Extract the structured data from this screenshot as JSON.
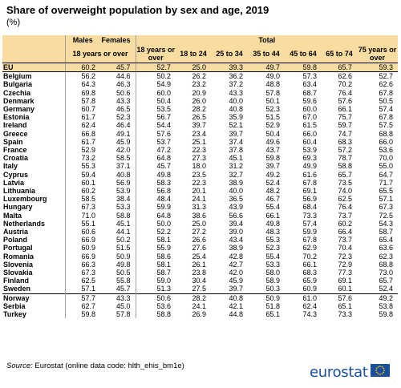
{
  "title": "Share of overweight population by sex and age, 2019",
  "unit": "(%)",
  "headers": {
    "males": "Males",
    "females": "Females",
    "age_sex": "18 years or over",
    "total": "Total",
    "age_cols": [
      "18 years or over",
      "18 to 24",
      "25 to 34",
      "35 to 44",
      "45 to 64",
      "65 to 74",
      "75 years or over"
    ]
  },
  "rows": [
    {
      "country": "EU",
      "values": [
        "60.2",
        "45.7",
        "52.7",
        "25.0",
        "39.3",
        "49.7",
        "59.8",
        "65.7",
        "59.3"
      ]
    },
    {
      "country": "Belgium",
      "values": [
        "56.2",
        "44.6",
        "50.2",
        "26.2",
        "36.2",
        "49.0",
        "57.3",
        "62.6",
        "52.7"
      ]
    },
    {
      "country": "Bulgaria",
      "values": [
        "64.3",
        "46.3",
        "54.9",
        "23.2",
        "37.2",
        "48.8",
        "63.4",
        "70.2",
        "62.6"
      ]
    },
    {
      "country": "Czechia",
      "values": [
        "69.8",
        "50.6",
        "60.0",
        "20.9",
        "43.3",
        "57.8",
        "68.7",
        "76.4",
        "67.8"
      ]
    },
    {
      "country": "Denmark",
      "values": [
        "57.8",
        "43.3",
        "50.4",
        "26.0",
        "40.0",
        "50.1",
        "59.6",
        "57.6",
        "50.5"
      ]
    },
    {
      "country": "Germany",
      "values": [
        "60.7",
        "46.5",
        "53.5",
        "28.2",
        "40.8",
        "52.3",
        "60.0",
        "66.1",
        "57.4"
      ]
    },
    {
      "country": "Estonia",
      "values": [
        "61.7",
        "52.3",
        "56.7",
        "26.5",
        "35.9",
        "51.5",
        "67.0",
        "75.7",
        "67.8"
      ]
    },
    {
      "country": "Ireland",
      "values": [
        "62.4",
        "46.4",
        "54.4",
        "39.7",
        "52.1",
        "52.9",
        "61.5",
        "59.7",
        "57.5"
      ]
    },
    {
      "country": "Greece",
      "values": [
        "66.8",
        "49.1",
        "57.6",
        "23.4",
        "39.7",
        "50.4",
        "66.0",
        "74.7",
        "68.8"
      ]
    },
    {
      "country": "Spain",
      "values": [
        "61.7",
        "45.9",
        "53.7",
        "25.1",
        "37.4",
        "49.6",
        "60.4",
        "68.3",
        "66.0"
      ]
    },
    {
      "country": "France",
      "values": [
        "52.9",
        "42.0",
        "47.2",
        "22.3",
        "37.8",
        "43.7",
        "53.9",
        "57.2",
        "53.6"
      ]
    },
    {
      "country": "Croatia",
      "values": [
        "73.2",
        "58.5",
        "64.8",
        "27.3",
        "45.1",
        "59.8",
        "69.3",
        "78.7",
        "70.0"
      ]
    },
    {
      "country": "Italy",
      "values": [
        "55.3",
        "37.1",
        "45.7",
        "18.0",
        "31.2",
        "39.7",
        "49.9",
        "58.8",
        "55.0"
      ]
    },
    {
      "country": "Cyprus",
      "values": [
        "59.4",
        "40.8",
        "49.8",
        "23.5",
        "32.7",
        "49.2",
        "61.6",
        "65.7",
        "64.7"
      ]
    },
    {
      "country": "Latvia",
      "values": [
        "60.1",
        "56.9",
        "58.3",
        "22.3",
        "38.9",
        "52.4",
        "67.8",
        "73.5",
        "71.7"
      ]
    },
    {
      "country": "Lithuania",
      "values": [
        "60.2",
        "53.9",
        "56.8",
        "20.1",
        "40.0",
        "48.2",
        "69.1",
        "74.0",
        "65.5"
      ]
    },
    {
      "country": "Luxembourg",
      "values": [
        "58.5",
        "38.4",
        "48.4",
        "24.1",
        "36.5",
        "46.7",
        "56.9",
        "62.5",
        "57.1"
      ]
    },
    {
      "country": "Hungary",
      "values": [
        "67.3",
        "53.3",
        "59.9",
        "31.3",
        "43.9",
        "55.4",
        "68.4",
        "76.4",
        "67.3"
      ]
    },
    {
      "country": "Malta",
      "values": [
        "71.0",
        "58.8",
        "64.8",
        "38.6",
        "56.6",
        "66.1",
        "73.3",
        "73.7",
        "72.5"
      ]
    },
    {
      "country": "Netherlands",
      "values": [
        "55.1",
        "45.1",
        "50.0",
        "25.0",
        "39.4",
        "49.8",
        "57.4",
        "60.2",
        "54.3"
      ]
    },
    {
      "country": "Austria",
      "values": [
        "60.6",
        "44.1",
        "52.2",
        "27.2",
        "39.0",
        "48.3",
        "59.9",
        "66.4",
        "58.7"
      ]
    },
    {
      "country": "Poland",
      "values": [
        "66.9",
        "50.2",
        "58.1",
        "26.6",
        "43.4",
        "55.3",
        "67.8",
        "73.7",
        "65.4"
      ]
    },
    {
      "country": "Portugal",
      "values": [
        "60.9",
        "51.5",
        "55.9",
        "27.6",
        "38.9",
        "52.3",
        "62.9",
        "70.4",
        "63.6"
      ]
    },
    {
      "country": "Romania",
      "values": [
        "66.9",
        "50.9",
        "58.6",
        "25.4",
        "42.8",
        "55.4",
        "70.2",
        "72.3",
        "62.3"
      ]
    },
    {
      "country": "Slovenia",
      "values": [
        "66.3",
        "49.8",
        "58.1",
        "26.1",
        "42.7",
        "53.3",
        "66.1",
        "72.9",
        "68.8"
      ]
    },
    {
      "country": "Slovakia",
      "values": [
        "67.3",
        "50.5",
        "58.7",
        "23.8",
        "42.0",
        "58.0",
        "68.3",
        "77.3",
        "73.0"
      ]
    },
    {
      "country": "Finland",
      "values": [
        "62.5",
        "55.8",
        "59.0",
        "30.4",
        "45.9",
        "58.9",
        "65.9",
        "69.1",
        "65.7"
      ]
    },
    {
      "country": "Sweden",
      "values": [
        "57.1",
        "45.7",
        "51.3",
        "27.5",
        "39.7",
        "50.3",
        "60.9",
        "60.1",
        "52.4"
      ]
    },
    {
      "country": "Norway",
      "values": [
        "57.7",
        "43.3",
        "50.6",
        "28.2",
        "40.8",
        "50.9",
        "61.0",
        "57.6",
        "49.2"
      ]
    },
    {
      "country": "Serbia",
      "values": [
        "62.7",
        "45.0",
        "53.6",
        "24.1",
        "42.1",
        "51.8",
        "62.4",
        "65.1",
        "53.8"
      ]
    },
    {
      "country": "Turkey",
      "values": [
        "59.8",
        "57.8",
        "58.8",
        "26.9",
        "44.8",
        "65.1",
        "74.3",
        "73.3",
        "59.8"
      ]
    }
  ],
  "source_label": "Source:",
  "source_text": "Eurostat (online data code: hlth_ehis_bm1e)",
  "logo_text": "eurostat",
  "colors": {
    "header_bg": "#f9dda0",
    "eu_row_bg": "#f6dea3",
    "logo_blue": "#1a4f9c",
    "flag_yellow": "#f5c400"
  }
}
